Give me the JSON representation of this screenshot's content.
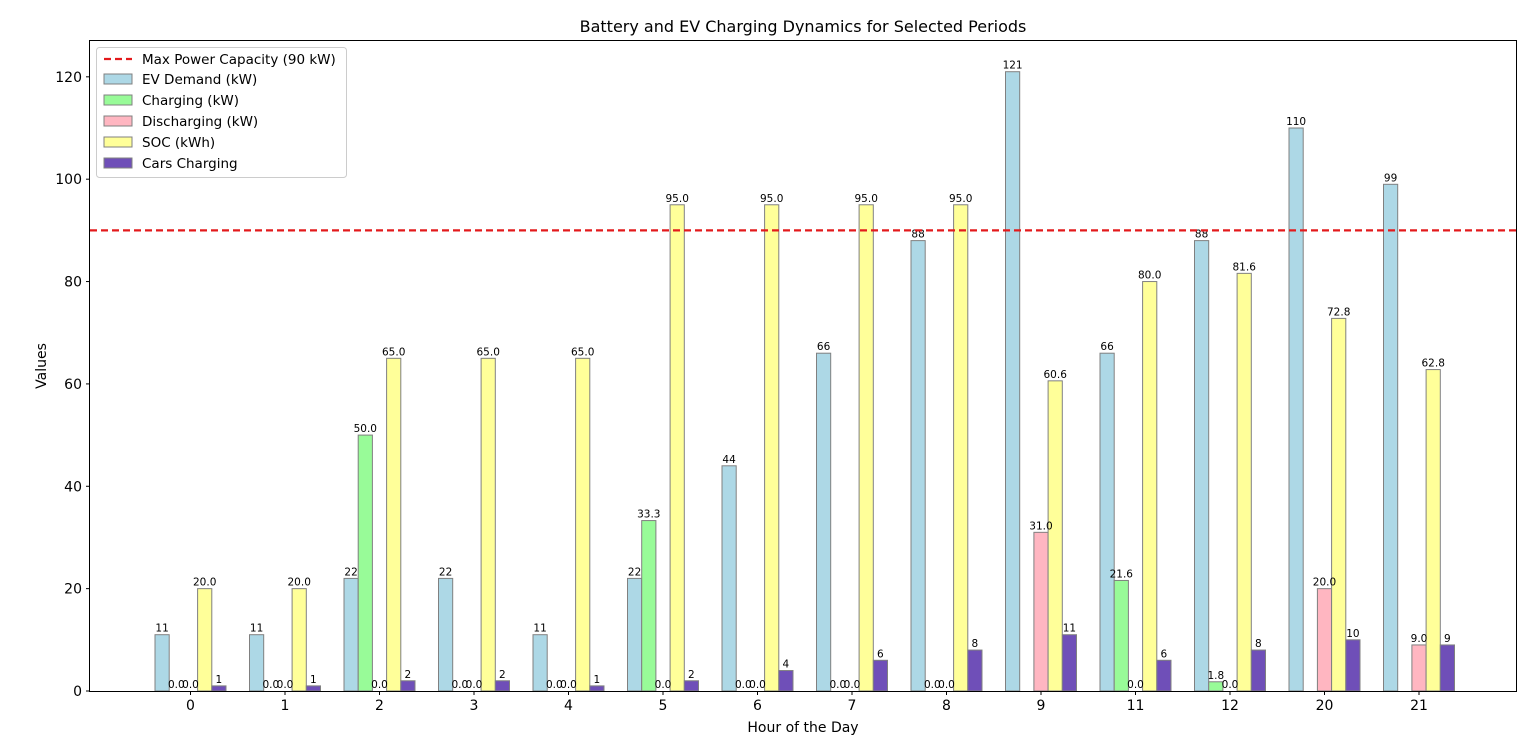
{
  "chart_data": {
    "type": "bar",
    "title": "Battery and EV Charging Dynamics for Selected Periods",
    "xlabel": "Hour of the Day",
    "ylabel": "Values",
    "categories": [
      "0",
      "1",
      "2",
      "3",
      "4",
      "5",
      "6",
      "7",
      "8",
      "9",
      "11",
      "12",
      "20",
      "21"
    ],
    "ylim": [
      0,
      127
    ],
    "yticks": [
      0,
      20,
      40,
      60,
      80,
      100,
      120
    ],
    "grid": false,
    "legend_position": "top-left",
    "series": [
      {
        "name": "EV Demand (kW)",
        "color": "#add8e6",
        "values": [
          11,
          11,
          22,
          22,
          11,
          22,
          44,
          66,
          88,
          121,
          66,
          88,
          110,
          99
        ],
        "labels": [
          "11",
          "11",
          "22",
          "22",
          "11",
          "22",
          "44",
          "66",
          "88",
          "121",
          "66",
          "88",
          "110",
          "99"
        ]
      },
      {
        "name": "Charging (kW)",
        "color": "#98fb98",
        "values": [
          0,
          0,
          50.0,
          0,
          0,
          33.3,
          0,
          0,
          0,
          0,
          21.6,
          1.8,
          0,
          0
        ],
        "labels": [
          "0.0",
          "0.0",
          "50.0",
          "0.0",
          "0.0",
          "33.3",
          "0.0",
          "0.0",
          "0.0",
          "",
          "21.6",
          "1.8",
          "",
          ""
        ]
      },
      {
        "name": "Discharging (kW)",
        "color": "#ffb6c1",
        "values": [
          0,
          0,
          0,
          0,
          0,
          0,
          0,
          0,
          0,
          31.0,
          0,
          0,
          20.0,
          9.0
        ],
        "labels": [
          "0.0",
          "0.0",
          "0.0",
          "0.0",
          "0.0",
          "0.0",
          "0.0",
          "0.0",
          "0.0",
          "31.0",
          "0.0",
          "0.0",
          "20.0",
          "9.0"
        ]
      },
      {
        "name": "SOC (kWh)",
        "color": "#ffff99",
        "values": [
          20.0,
          20.0,
          65.0,
          65.0,
          65.0,
          95.0,
          95.0,
          95.0,
          95.0,
          60.6,
          80.0,
          81.6,
          72.8,
          62.8
        ],
        "labels": [
          "20.0",
          "20.0",
          "65.0",
          "65.0",
          "65.0",
          "95.0",
          "95.0",
          "95.0",
          "95.0",
          "60.6",
          "80.0",
          "81.6",
          "72.8",
          "62.8"
        ]
      },
      {
        "name": "Cars Charging",
        "color": "#6f4fb8",
        "values": [
          1,
          1,
          2,
          2,
          1,
          2,
          4,
          6,
          8,
          11,
          6,
          8,
          10,
          9
        ],
        "labels": [
          "1",
          "1",
          "2",
          "2",
          "1",
          "2",
          "4",
          "6",
          "8",
          "11",
          "6",
          "8",
          "10",
          "9"
        ]
      }
    ],
    "reference_line": {
      "name": "Max Power Capacity (90 kW)",
      "value": 90,
      "color": "#e31a1c",
      "style": "dashed"
    }
  }
}
